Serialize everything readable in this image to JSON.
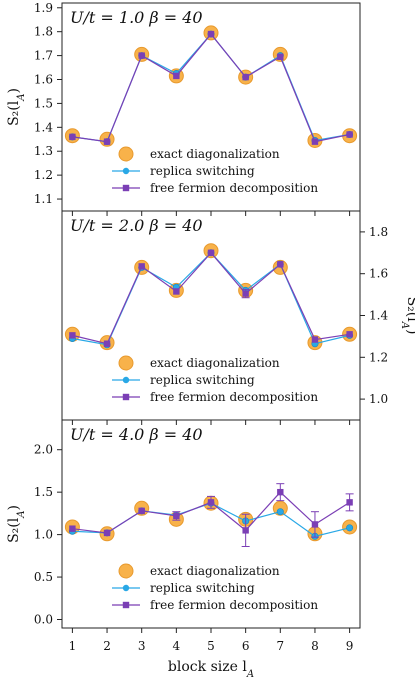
{
  "chart_data": [
    {
      "type": "line",
      "panel_label": "U/t = 1.0    β = 40",
      "ylabel": "S₂(l_A)",
      "ylabel_side": "left",
      "ylim": [
        1.05,
        1.92
      ],
      "yticks": [
        1.1,
        1.2,
        1.3,
        1.4,
        1.5,
        1.6,
        1.7,
        1.8,
        1.9
      ],
      "ytick_labels": [
        "1.1",
        "1.2",
        "1.3",
        "1.4",
        "1.5",
        "1.6",
        "1.7",
        "1.8",
        "1.9"
      ],
      "x": [
        1,
        2,
        3,
        4,
        5,
        6,
        7,
        8,
        9
      ],
      "series": [
        {
          "name": "exact diagonalization",
          "style": "ed",
          "values": [
            1.365,
            1.35,
            1.705,
            1.615,
            1.795,
            1.61,
            1.705,
            1.345,
            1.365
          ]
        },
        {
          "name": "replica switching",
          "style": "rs",
          "values": [
            1.36,
            1.34,
            1.7,
            1.625,
            1.79,
            1.61,
            1.7,
            1.345,
            1.37
          ]
        },
        {
          "name": "free fermion decomposition",
          "style": "ff",
          "values": [
            1.36,
            1.34,
            1.7,
            1.615,
            1.79,
            1.61,
            1.695,
            1.34,
            1.37
          ],
          "errors": [
            0,
            0,
            0,
            0,
            0,
            0,
            0,
            0,
            0
          ]
        }
      ],
      "legend_position": "lower-center"
    },
    {
      "type": "line",
      "panel_label": "U/t = 2.0    β = 40",
      "ylabel": "S₂(l_A)",
      "ylabel_side": "right",
      "ylim": [
        0.9,
        1.9
      ],
      "yticks": [
        1.0,
        1.2,
        1.4,
        1.6,
        1.8
      ],
      "ytick_labels": [
        "1.0",
        "1.2",
        "1.4",
        "1.6",
        "1.8"
      ],
      "x": [
        1,
        2,
        3,
        4,
        5,
        6,
        7,
        8,
        9
      ],
      "series": [
        {
          "name": "exact diagonalization",
          "style": "ed",
          "values": [
            1.31,
            1.27,
            1.63,
            1.52,
            1.71,
            1.52,
            1.63,
            1.27,
            1.31
          ]
        },
        {
          "name": "replica switching",
          "style": "rs",
          "values": [
            1.29,
            1.26,
            1.63,
            1.535,
            1.7,
            1.52,
            1.645,
            1.265,
            1.305
          ]
        },
        {
          "name": "free fermion decomposition",
          "style": "ff",
          "values": [
            1.305,
            1.265,
            1.635,
            1.515,
            1.7,
            1.505,
            1.645,
            1.285,
            1.31
          ],
          "errors": [
            0,
            0,
            0,
            0,
            0,
            0.02,
            0,
            0,
            0
          ]
        }
      ],
      "legend_position": "lower-center"
    },
    {
      "type": "line",
      "panel_label": "U/t = 4.0    β = 40",
      "ylabel": "S₂(l_A)",
      "ylabel_side": "left",
      "xlabel": "block size  l_A",
      "ylim": [
        -0.1,
        2.35
      ],
      "yticks": [
        0.0,
        0.5,
        1.0,
        1.5,
        2.0
      ],
      "ytick_labels": [
        "0.0",
        "0.5",
        "1.0",
        "1.5",
        "2.0"
      ],
      "x": [
        1,
        2,
        3,
        4,
        5,
        6,
        7,
        8,
        9
      ],
      "series": [
        {
          "name": "exact diagonalization",
          "style": "ed",
          "values": [
            1.09,
            1.01,
            1.31,
            1.18,
            1.37,
            1.18,
            1.31,
            1.01,
            1.09
          ]
        },
        {
          "name": "replica switching",
          "style": "rs",
          "values": [
            1.04,
            1.02,
            1.28,
            1.23,
            1.37,
            1.16,
            1.27,
            0.98,
            1.08
          ]
        },
        {
          "name": "free fermion decomposition",
          "style": "ff",
          "values": [
            1.07,
            1.02,
            1.28,
            1.22,
            1.38,
            1.05,
            1.5,
            1.12,
            1.38
          ],
          "errors": [
            0,
            0,
            0,
            0.05,
            0.07,
            0.19,
            0.1,
            0.15,
            0.1
          ]
        }
      ],
      "legend_position": "lower-center"
    }
  ],
  "x_tick_labels": [
    "1",
    "2",
    "3",
    "4",
    "5",
    "6",
    "7",
    "8",
    "9"
  ],
  "colors": {
    "ed_fill": "#f8b24a",
    "ed_edge": "#e89a2e",
    "rs": "#29a8e6",
    "ff": "#7b3fb5"
  }
}
